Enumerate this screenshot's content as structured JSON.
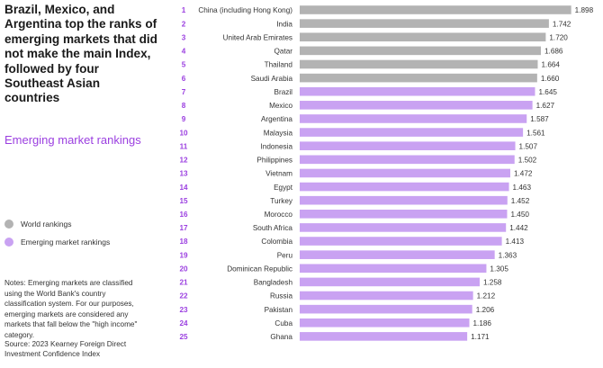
{
  "title": "Brazil, Mexico, and Argentina top the ranks of emerging markets that did not make the main Index, followed by four Southeast Asian countries",
  "subtitle": "Emerging market rankings",
  "legend": [
    {
      "label": "World rankings",
      "color": "#b3b3b3"
    },
    {
      "label": "Emerging market rankings",
      "color": "#c9a2f2"
    }
  ],
  "notes": "Notes: Emerging markets are classified using the World Bank's country classification system. For our purposes, emerging markets are considered any markets that fall below the \"high income\" category.",
  "source": "Source: 2023 Kearney Foreign Direct Investment Confidence Index",
  "colors": {
    "world": "#b3b3b3",
    "emerging": "#c9a2f2",
    "rank": "#9b3fe0",
    "accent": "#9b3fe0"
  },
  "chart_data": {
    "type": "bar",
    "orientation": "horizontal",
    "xlim": [
      0,
      1.9
    ],
    "ranks": [
      1,
      2,
      3,
      4,
      5,
      6,
      7,
      8,
      9,
      10,
      11,
      12,
      13,
      14,
      15,
      16,
      17,
      18,
      19,
      20,
      21,
      22,
      23,
      24,
      25
    ],
    "categories": [
      "China (including Hong Kong)",
      "India",
      "United Arab Emirates",
      "Qatar",
      "Thailand",
      "Saudi Arabia",
      "Brazil",
      "Mexico",
      "Argentina",
      "Malaysia",
      "Indonesia",
      "Philippines",
      "Vietnam",
      "Egypt",
      "Turkey",
      "Morocco",
      "South Africa",
      "Colombia",
      "Peru",
      "Dominican Republic",
      "Bangladesh",
      "Russia",
      "Pakistan",
      "Cuba",
      "Ghana"
    ],
    "values": [
      1.898,
      1.742,
      1.72,
      1.686,
      1.664,
      1.66,
      1.645,
      1.627,
      1.587,
      1.561,
      1.507,
      1.502,
      1.472,
      1.463,
      1.452,
      1.45,
      1.442,
      1.413,
      1.363,
      1.305,
      1.258,
      1.212,
      1.206,
      1.186,
      1.171
    ],
    "value_labels": [
      "1.898",
      "1.742",
      "1.720",
      "1.686",
      "1.664",
      "1.660",
      "1.645",
      "1.627",
      "1.587",
      "1.561",
      "1.507",
      "1.502",
      "1.472",
      "1.463",
      "1.452",
      "1.450",
      "1.442",
      "1.413",
      "1.363",
      "1.305",
      "1.258",
      "1.212",
      "1.206",
      "1.186",
      "1.171"
    ],
    "group": [
      "World rankings",
      "World rankings",
      "World rankings",
      "World rankings",
      "World rankings",
      "World rankings",
      "Emerging market rankings",
      "Emerging market rankings",
      "Emerging market rankings",
      "Emerging market rankings",
      "Emerging market rankings",
      "Emerging market rankings",
      "Emerging market rankings",
      "Emerging market rankings",
      "Emerging market rankings",
      "Emerging market rankings",
      "Emerging market rankings",
      "Emerging market rankings",
      "Emerging market rankings",
      "Emerging market rankings",
      "Emerging market rankings",
      "Emerging market rankings",
      "Emerging market rankings",
      "Emerging market rankings",
      "Emerging market rankings"
    ]
  }
}
